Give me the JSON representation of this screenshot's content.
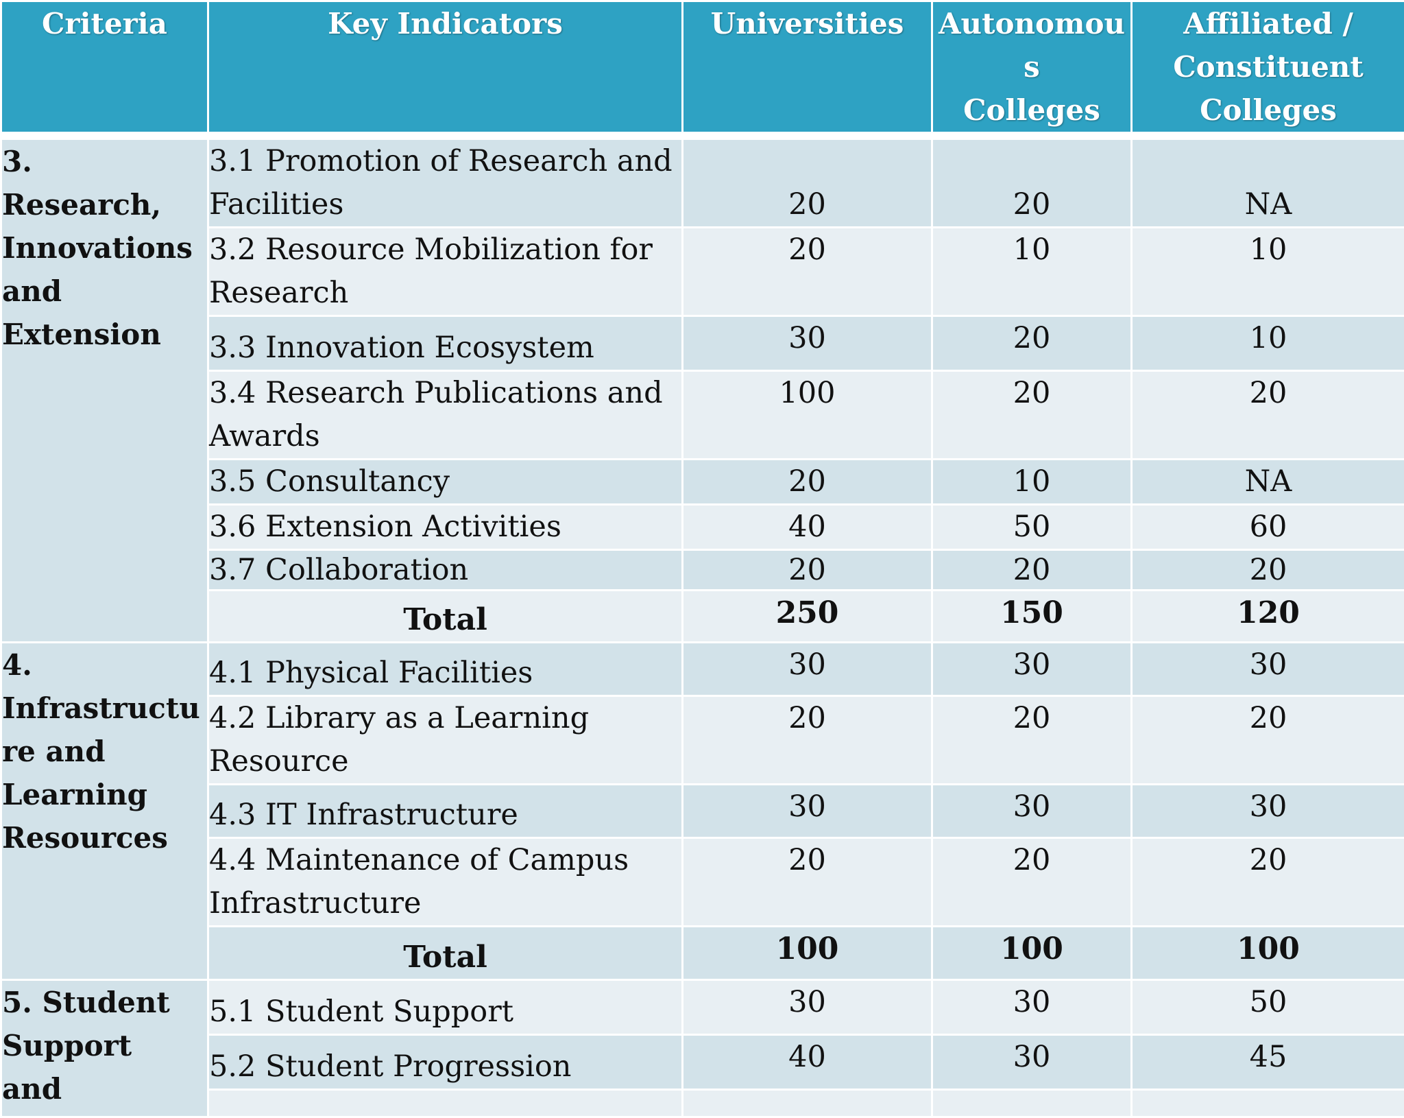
{
  "table": {
    "headers": [
      "Criteria",
      "Key Indicators",
      "Universities",
      "Autonomous Colleges",
      "Affiliated / Constituent Colleges"
    ],
    "header_lines": {
      "autonomous": [
        "Autonomou",
        "s",
        "Colleges"
      ],
      "affiliated": [
        "Affiliated /",
        "Constituent",
        "Colleges"
      ]
    },
    "sections": [
      {
        "criteria_lines": [
          "3.",
          "Research,",
          "Innovations",
          "and",
          "Extension"
        ],
        "rows": [
          {
            "indicator": "3.1  Promotion of Research and Facilities",
            "values": [
              "20",
              "20",
              "NA"
            ]
          },
          {
            "indicator": "3.2  Resource Mobilization for Research",
            "values": [
              "20",
              "10",
              "10"
            ]
          },
          {
            "indicator": "3.3  Innovation Ecosystem",
            "values": [
              "30",
              "20",
              "10"
            ]
          },
          {
            "indicator": "3.4  Research Publications and Awards",
            "values": [
              "100",
              "20",
              "20"
            ]
          },
          {
            "indicator": "3.5  Consultancy",
            "values": [
              "20",
              "10",
              "NA"
            ]
          },
          {
            "indicator": "3.6  Extension Activities",
            "values": [
              "40",
              "50",
              "60"
            ]
          },
          {
            "indicator": "3.7  Collaboration",
            "values": [
              "20",
              "20",
              "20"
            ]
          }
        ],
        "total": {
          "label": "Total",
          "values": [
            "250",
            "150",
            "120"
          ]
        }
      },
      {
        "criteria_lines": [
          "4.",
          "Infrastructu",
          "re and",
          "Learning",
          "Resources"
        ],
        "rows": [
          {
            "indicator": "4.1  Physical Facilities",
            "values": [
              "30",
              "30",
              "30"
            ]
          },
          {
            "indicator": "4.2  Library as a Learning Resource",
            "values": [
              "20",
              "20",
              "20"
            ]
          },
          {
            "indicator": "4.3  IT Infrastructure",
            "values": [
              "30",
              "30",
              "30"
            ]
          },
          {
            "indicator": "4.4  Maintenance of Campus Infrastructure",
            "values": [
              "20",
              "20",
              "20"
            ]
          }
        ],
        "total": {
          "label": "Total",
          "values": [
            "100",
            "100",
            "100"
          ]
        }
      },
      {
        "criteria_lines": [
          "5. Student",
          "Support",
          "and"
        ],
        "rows": [
          {
            "indicator": "5.1  Student Support",
            "values": [
              "30",
              "30",
              "50"
            ]
          },
          {
            "indicator": "5.2  Student Progression",
            "values": [
              "40",
              "30",
              "45"
            ]
          }
        ]
      }
    ]
  }
}
